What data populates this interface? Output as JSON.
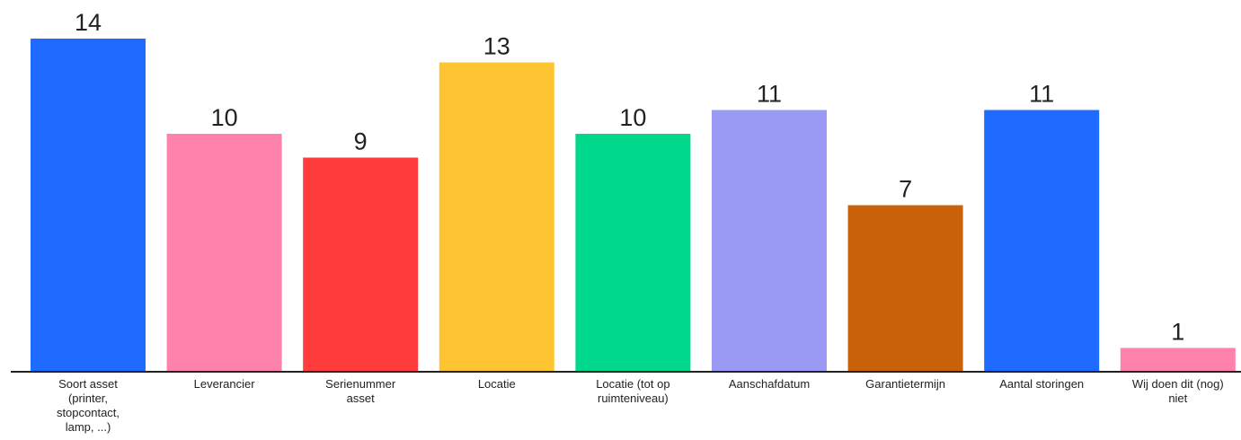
{
  "chart_data": {
    "type": "bar",
    "title": "",
    "xlabel": "",
    "ylabel": "",
    "ylim": [
      0,
      14
    ],
    "grid": false,
    "legend": "none",
    "categories": [
      "Soort asset\n(printer,\nstopcontact,\nlamp, ...)",
      "Leverancier",
      "Serienummer\nasset",
      "Locatie",
      "Locatie (tot op\nruimteniveau)",
      "Aanschafdatum",
      "Garantietermijn",
      "Aantal storingen",
      "Wij doen dit (nog)\nniet"
    ],
    "values": [
      14,
      10,
      9,
      13,
      10,
      11,
      7,
      11,
      1
    ],
    "value_labels": [
      "14",
      "10",
      "9",
      "13",
      "10",
      "11",
      "7",
      "11",
      "1"
    ],
    "colors": [
      "#1F6BFF",
      "#FF82AD",
      "#FF3D3D",
      "#FFC432",
      "#00D98C",
      "#9A9AF5",
      "#C9620B",
      "#1F6BFF",
      "#FF82AD"
    ]
  }
}
